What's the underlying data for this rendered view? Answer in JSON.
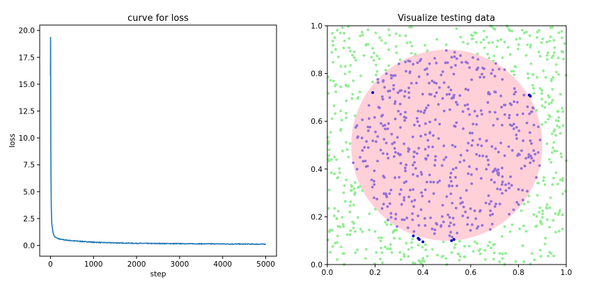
{
  "chart_data": [
    {
      "type": "line",
      "title": "curve for loss",
      "xlabel": "step",
      "ylabel": "loss",
      "xlim": [
        -250,
        5250
      ],
      "ylim": [
        -1.0,
        20.5
      ],
      "xticks": [
        0,
        1000,
        2000,
        3000,
        4000,
        5000
      ],
      "xtick_labels": [
        "0",
        "1000",
        "2000",
        "3000",
        "4000",
        "5000"
      ],
      "yticks": [
        0.0,
        2.5,
        5.0,
        7.5,
        10.0,
        12.5,
        15.0,
        17.5,
        20.0
      ],
      "ytick_labels": [
        "0.0",
        "2.5",
        "5.0",
        "7.5",
        "10.0",
        "12.5",
        "15.0",
        "17.5",
        "20.0"
      ],
      "grid": false,
      "series": [
        {
          "color": "#1f77b4",
          "x": [
            0,
            2,
            4,
            6,
            8,
            10,
            15,
            20,
            30,
            40,
            50,
            60,
            80,
            100,
            130,
            170,
            200,
            260,
            320,
            400,
            500,
            600,
            700,
            800,
            900,
            1000,
            1200,
            1400,
            1600,
            1800,
            2000,
            2400,
            2800,
            3200,
            3600,
            4000,
            4400,
            4800,
            5000
          ],
          "y": [
            15.8,
            19.4,
            17.6,
            13.5,
            10.2,
            8.0,
            5.2,
            3.4,
            2.1,
            1.75,
            1.45,
            1.2,
            0.95,
            0.8,
            0.72,
            0.66,
            0.6,
            0.56,
            0.52,
            0.48,
            0.44,
            0.41,
            0.38,
            0.35,
            0.33,
            0.3,
            0.27,
            0.25,
            0.23,
            0.21,
            0.2,
            0.18,
            0.17,
            0.16,
            0.15,
            0.14,
            0.13,
            0.12,
            0.12
          ]
        }
      ]
    },
    {
      "type": "scatter",
      "title": "Visualize testing data",
      "xlim": [
        0.0,
        1.0
      ],
      "ylim": [
        0.0,
        1.0
      ],
      "xticks": [
        0.0,
        0.2,
        0.4,
        0.6,
        0.8,
        1.0
      ],
      "xtick_labels": [
        "0.0",
        "0.2",
        "0.4",
        "0.6",
        "0.8",
        "1.0"
      ],
      "yticks": [
        0.0,
        0.2,
        0.4,
        0.6,
        0.8,
        1.0
      ],
      "ytick_labels": [
        "0.0",
        "0.2",
        "0.4",
        "0.6",
        "0.8",
        "1.0"
      ],
      "grid": false,
      "circle": {
        "center": [
          0.5,
          0.5
        ],
        "radius": 0.4,
        "color": "#ffc0cb"
      },
      "point_count": 1000,
      "colors": {
        "outside": "#90ee90",
        "inside": "#9370db",
        "misclassified": "#0000cd"
      },
      "misclassified_points": [
        [
          0.36,
          0.12
        ],
        [
          0.38,
          0.11
        ],
        [
          0.385,
          0.105
        ],
        [
          0.4,
          0.095
        ],
        [
          0.52,
          0.1
        ],
        [
          0.53,
          0.105
        ],
        [
          0.845,
          0.71
        ],
        [
          0.85,
          0.705
        ],
        [
          0.19,
          0.72
        ]
      ]
    }
  ]
}
